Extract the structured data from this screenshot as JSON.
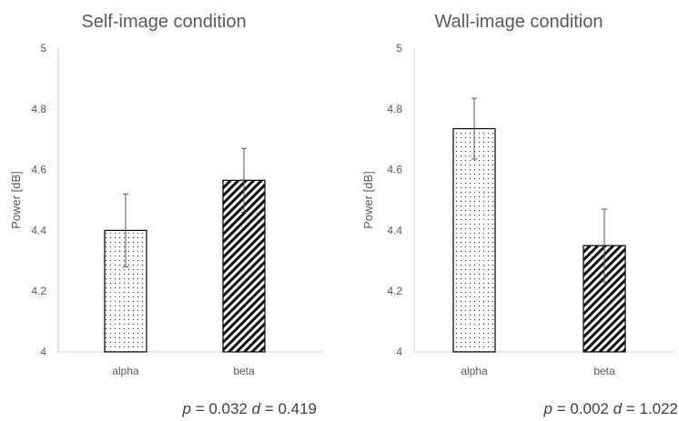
{
  "chart_data": [
    {
      "type": "bar",
      "title": "Self-image condition",
      "xlabel": "",
      "ylabel": "Power [dB]",
      "ylim": [
        4,
        5
      ],
      "yticks": [
        "4",
        "4.2",
        "4.4",
        "4.6",
        "4.8",
        "5"
      ],
      "categories": [
        "alpha",
        "beta"
      ],
      "values": [
        4.4,
        4.565
      ],
      "error": [
        0.12,
        0.105
      ],
      "patterns": [
        "dots",
        "diagonal-stripes"
      ],
      "grid": false,
      "stats": {
        "p_label": "p",
        "p_value": "= 0.032",
        "d_label": "d",
        "d_value": "= 0.419"
      }
    },
    {
      "type": "bar",
      "title": "Wall-image condition",
      "xlabel": "",
      "ylabel": "Power [dB]",
      "ylim": [
        4,
        5
      ],
      "yticks": [
        "4",
        "4.2",
        "4.4",
        "4.6",
        "4.8",
        "5"
      ],
      "categories": [
        "alpha",
        "beta"
      ],
      "values": [
        4.735,
        4.35
      ],
      "error": [
        0.1,
        0.12
      ],
      "patterns": [
        "dots",
        "diagonal-stripes"
      ],
      "grid": false,
      "stats": {
        "p_label": "p",
        "p_value": "= 0.002",
        "d_label": "d",
        "d_value": "= 1.022"
      }
    }
  ]
}
